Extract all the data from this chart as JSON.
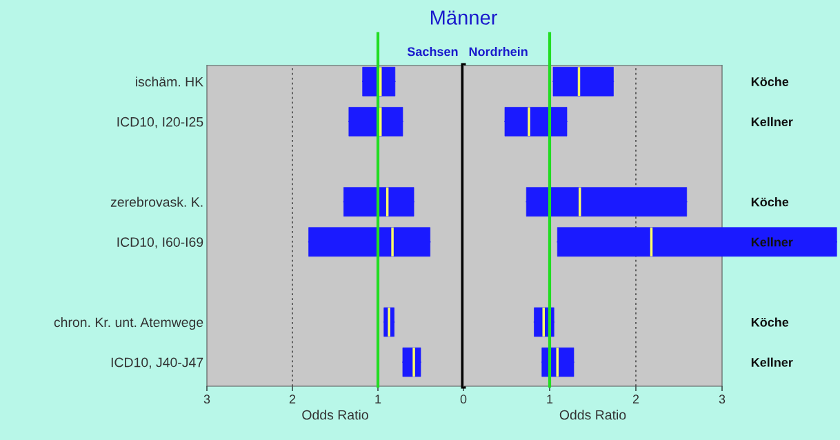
{
  "chart_data": [
    {
      "type": "box",
      "orientation": "horizontal",
      "title": "Männer",
      "subtitle": "Sachsen",
      "xlabel": "Odds Ratio",
      "categories": [
        "ischäm. HK",
        "ICD10, I20-I25",
        null,
        "zerebrovask. K.",
        "ICD10, I60-I69",
        null,
        "chron. Kr. unt. Atemwege",
        "ICD10, J40-J47"
      ],
      "series": [
        {
          "color": "#1a1aff",
          "boxes": [
            {
              "low": 0.8,
              "q1": 0.8,
              "median": 0.97,
              "q3": 1.18,
              "high": 1.18
            },
            {
              "low": 0.71,
              "q1": 0.71,
              "median": 0.97,
              "q3": 1.34,
              "high": 1.34
            },
            null,
            {
              "low": 0.58,
              "q1": 0.58,
              "median": 0.89,
              "q3": 1.4,
              "high": 1.4
            },
            {
              "low": 0.39,
              "q1": 0.39,
              "median": 0.83,
              "q3": 1.81,
              "high": 1.81
            },
            null,
            {
              "low": 0.81,
              "q1": 0.81,
              "median": 0.87,
              "q3": 0.93,
              "high": 0.93
            },
            {
              "low": 0.5,
              "q1": 0.5,
              "median": 0.58,
              "q3": 0.71,
              "high": 0.71
            }
          ]
        }
      ],
      "xlim": [
        3,
        0
      ],
      "xticks": [
        0,
        1,
        2,
        3
      ],
      "ref_lines": [
        {
          "axis": "x",
          "value": 1,
          "color": "#22dd22"
        },
        {
          "axis": "x",
          "value": 0,
          "color": "#000000"
        },
        {
          "axis": "x",
          "value": 2,
          "color": "#333333",
          "line_style": "dotted"
        }
      ]
    },
    {
      "type": "box",
      "orientation": "horizontal",
      "subtitle": "Nordrhein",
      "xlabel": "Odds Ratio",
      "categories": [
        "Köche",
        "Kellner",
        null,
        "Köche",
        "Kellner",
        null,
        "Köche",
        "Kellner"
      ],
      "series": [
        {
          "color": "#1a1aff",
          "boxes": [
            {
              "low": 1.04,
              "q1": 1.04,
              "median": 1.34,
              "q3": 1.74,
              "high": 1.74
            },
            {
              "low": 0.48,
              "q1": 0.48,
              "median": 0.76,
              "q3": 1.2,
              "high": 1.2
            },
            null,
            {
              "low": 0.73,
              "q1": 0.73,
              "median": 1.35,
              "q3": 2.59,
              "high": 2.59
            },
            {
              "low": 1.09,
              "q1": 1.09,
              "median": 2.18,
              "q3": 4.33,
              "high": 4.33
            },
            null,
            {
              "low": 0.82,
              "q1": 0.82,
              "median": 0.93,
              "q3": 1.05,
              "high": 1.05
            },
            {
              "low": 0.91,
              "q1": 0.91,
              "median": 1.09,
              "q3": 1.28,
              "high": 1.28
            }
          ]
        }
      ],
      "xlim": [
        0,
        3
      ],
      "xticks": [
        1,
        2,
        3
      ],
      "ref_lines": [
        {
          "axis": "x",
          "value": 1,
          "color": "#22dd22"
        },
        {
          "axis": "x",
          "value": 2,
          "color": "#333333",
          "line_style": "dotted"
        }
      ]
    }
  ]
}
